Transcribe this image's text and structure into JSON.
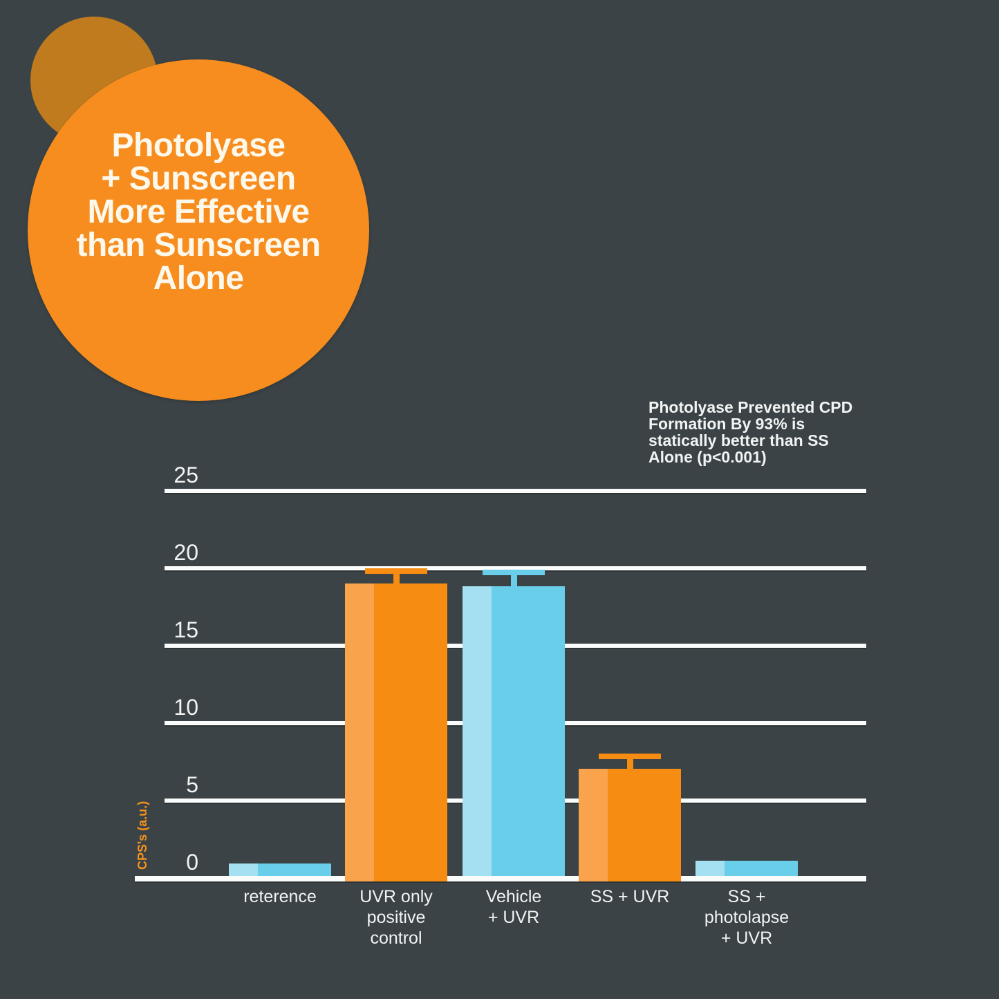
{
  "header": {
    "title": "Photolyase + Sunscreen More Effective than Sunscreen Alone",
    "title_lines": [
      "Photolyase",
      "+ Sunscreen",
      "More Effective",
      "than Sunscreen",
      "Alone"
    ]
  },
  "colors": {
    "background": "#3B4346",
    "circle_orange": "#F68D1E",
    "circle_brown": "#BF7B1E",
    "bar_orange": "#F78C12",
    "bar_orange_light": "#F9A34C",
    "bar_blue": "#68CEE9",
    "bar_blue_light": "#A4DFF2",
    "grid_white": "#FAFBFB",
    "text_white": "#F2F4F4",
    "text_cream": "#FDF8EC",
    "axis_title_orange": "#F5921D"
  },
  "chart_data": {
    "type": "bar",
    "categories": [
      "reterence",
      "UVR only positive control",
      "Vehicle + UVR",
      "SS + UVR",
      "SS + photolapse + UVR"
    ],
    "category_lines": [
      [
        "reterence"
      ],
      [
        "UVR only",
        "positive",
        "control"
      ],
      [
        "Vehicle",
        "+ UVR"
      ],
      [
        "SS + UVR"
      ],
      [
        "SS +",
        "photolapse",
        "+ UVR"
      ]
    ],
    "values": [
      0.8,
      18.9,
      18.7,
      6.9,
      1.0
    ],
    "errors_plus": [
      null,
      0.8,
      0.9,
      0.8,
      null
    ],
    "bar_color_keys": [
      "blue",
      "orange",
      "blue",
      "orange",
      "blue"
    ],
    "xlabel": "",
    "ylabel": "CPS's (a.u.)",
    "yticks": [
      0,
      5,
      10,
      15,
      20,
      25
    ],
    "ylim": [
      0,
      25
    ],
    "grid": true,
    "legend": false,
    "annotation": "Photolyase Prevented CPD Formation By 93% is statically better than SS Alone (p<0.001)",
    "annotation_lines": [
      "Photolyase Prevented CPD",
      "Formation By 93% is",
      "statically better than SS",
      "Alone (p<0.001)"
    ]
  }
}
